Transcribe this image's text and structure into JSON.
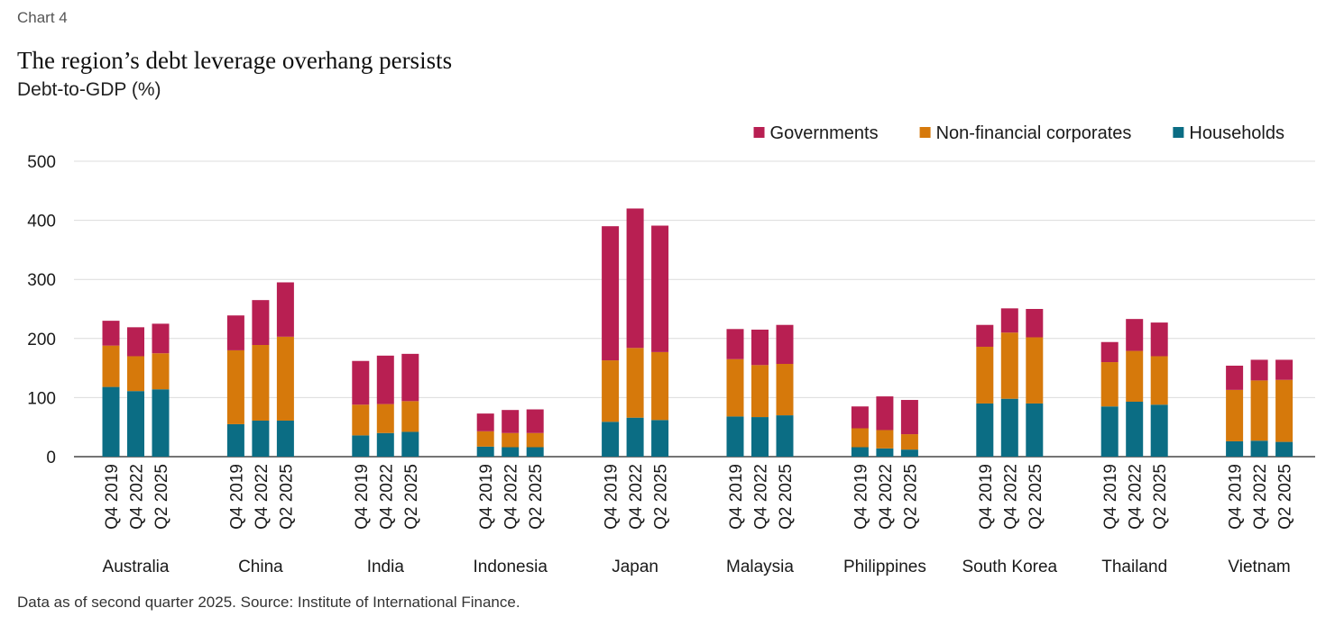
{
  "header": {
    "chart_label": "Chart 4",
    "title": "The region’s debt leverage overhang persists",
    "subtitle": "Debt-to-GDP (%)"
  },
  "footnote": "Data as of second quarter 2025. Source: Institute of International Finance.",
  "colors": {
    "Governments": "#b81f52",
    "Non-financial corporates": "#d6790b",
    "Households": "#0b6d84",
    "gridline": "#dcdcdc",
    "axis": "#222222"
  },
  "chart_data": {
    "type": "bar",
    "stacked": true,
    "title": "The region’s debt leverage overhang persists",
    "ylabel": "Debt-to-GDP (%)",
    "xlabel": "",
    "ylim": [
      0,
      500
    ],
    "yticks": [
      0,
      100,
      200,
      300,
      400,
      500
    ],
    "grid": true,
    "legend_position": "top-right",
    "legend_order": [
      "Governments",
      "Non-financial corporates",
      "Households"
    ],
    "periods": [
      "Q4 2019",
      "Q4 2022",
      "Q2 2025"
    ],
    "groups": [
      {
        "name": "Australia",
        "bars": [
          {
            "period": "Q4 2019",
            "Households": 118,
            "Non-financial corporates": 70,
            "Governments": 42
          },
          {
            "period": "Q4 2022",
            "Households": 111,
            "Non-financial corporates": 59,
            "Governments": 49
          },
          {
            "period": "Q2 2025",
            "Households": 114,
            "Non-financial corporates": 61,
            "Governments": 50
          }
        ]
      },
      {
        "name": "China",
        "bars": [
          {
            "period": "Q4 2019",
            "Households": 55,
            "Non-financial corporates": 125,
            "Governments": 59
          },
          {
            "period": "Q4 2022",
            "Households": 61,
            "Non-financial corporates": 128,
            "Governments": 76
          },
          {
            "period": "Q2 2025",
            "Households": 61,
            "Non-financial corporates": 142,
            "Governments": 92
          }
        ]
      },
      {
        "name": "India",
        "bars": [
          {
            "period": "Q4 2019",
            "Households": 36,
            "Non-financial corporates": 52,
            "Governments": 74
          },
          {
            "period": "Q4 2022",
            "Households": 40,
            "Non-financial corporates": 49,
            "Governments": 82
          },
          {
            "period": "Q2 2025",
            "Households": 42,
            "Non-financial corporates": 52,
            "Governments": 80
          }
        ]
      },
      {
        "name": "Indonesia",
        "bars": [
          {
            "period": "Q4 2019",
            "Households": 17,
            "Non-financial corporates": 26,
            "Governments": 30
          },
          {
            "period": "Q4 2022",
            "Households": 16,
            "Non-financial corporates": 24,
            "Governments": 39
          },
          {
            "period": "Q2 2025",
            "Households": 16,
            "Non-financial corporates": 24,
            "Governments": 40
          }
        ]
      },
      {
        "name": "Japan",
        "bars": [
          {
            "period": "Q4 2019",
            "Households": 59,
            "Non-financial corporates": 104,
            "Governments": 227
          },
          {
            "period": "Q4 2022",
            "Households": 66,
            "Non-financial corporates": 118,
            "Governments": 236
          },
          {
            "period": "Q2 2025",
            "Households": 62,
            "Non-financial corporates": 115,
            "Governments": 214
          }
        ]
      },
      {
        "name": "Malaysia",
        "bars": [
          {
            "period": "Q4 2019",
            "Households": 68,
            "Non-financial corporates": 97,
            "Governments": 51
          },
          {
            "period": "Q4 2022",
            "Households": 67,
            "Non-financial corporates": 88,
            "Governments": 60
          },
          {
            "period": "Q2 2025",
            "Households": 70,
            "Non-financial corporates": 87,
            "Governments": 66
          }
        ]
      },
      {
        "name": "Philippines",
        "bars": [
          {
            "period": "Q4 2019",
            "Households": 16,
            "Non-financial corporates": 32,
            "Governments": 37
          },
          {
            "period": "Q4 2022",
            "Households": 14,
            "Non-financial corporates": 31,
            "Governments": 57
          },
          {
            "period": "Q2 2025",
            "Households": 12,
            "Non-financial corporates": 26,
            "Governments": 58
          }
        ]
      },
      {
        "name": "South Korea",
        "bars": [
          {
            "period": "Q4 2019",
            "Households": 90,
            "Non-financial corporates": 96,
            "Governments": 37
          },
          {
            "period": "Q4 2022",
            "Households": 98,
            "Non-financial corporates": 112,
            "Governments": 41
          },
          {
            "period": "Q2 2025",
            "Households": 90,
            "Non-financial corporates": 112,
            "Governments": 48
          }
        ]
      },
      {
        "name": "Thailand",
        "bars": [
          {
            "period": "Q4 2019",
            "Households": 85,
            "Non-financial corporates": 75,
            "Governments": 34
          },
          {
            "period": "Q4 2022",
            "Households": 93,
            "Non-financial corporates": 86,
            "Governments": 54
          },
          {
            "period": "Q2 2025",
            "Households": 88,
            "Non-financial corporates": 82,
            "Governments": 57
          }
        ]
      },
      {
        "name": "Vietnam",
        "bars": [
          {
            "period": "Q4 2019",
            "Households": 26,
            "Non-financial corporates": 87,
            "Governments": 41
          },
          {
            "period": "Q4 2022",
            "Households": 27,
            "Non-financial corporates": 102,
            "Governments": 35
          },
          {
            "period": "Q2 2025",
            "Households": 25,
            "Non-financial corporates": 105,
            "Governments": 34
          }
        ]
      }
    ]
  }
}
